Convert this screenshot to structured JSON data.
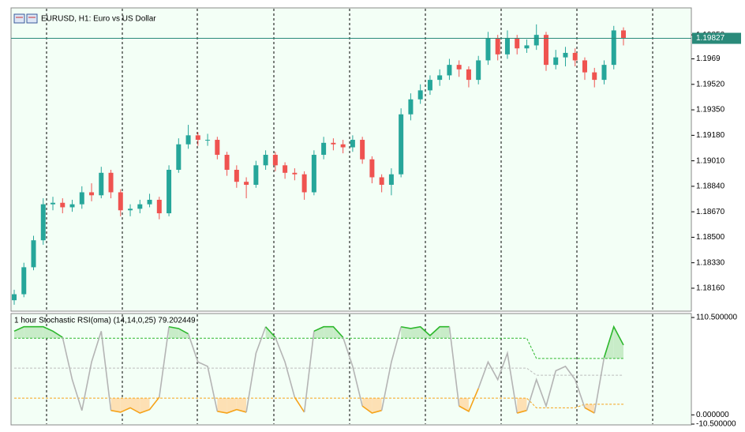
{
  "chart_data": [
    {
      "type": "candlestick",
      "title": "EURUSD, H1:  Euro vs US Dollar",
      "open": [
        1.1808,
        1.1812,
        1.183,
        1.1848,
        1.1872,
        1.1873,
        1.187,
        1.1872,
        1.188,
        1.1878,
        1.1893,
        1.188,
        1.1868,
        1.1869,
        1.1872,
        1.1875,
        1.1866,
        1.1895,
        1.1912,
        1.1918,
        1.1915,
        1.1915,
        1.1905,
        1.1895,
        1.1887,
        1.1885,
        1.1898,
        1.1905,
        1.1898,
        1.1893,
        1.1892,
        1.188,
        1.1905,
        1.1913,
        1.1912,
        1.191,
        1.1915,
        1.1902,
        1.189,
        1.1885,
        1.1892,
        1.1932,
        1.1942,
        1.1948,
        1.1955,
        1.1958,
        1.1965,
        1.1962,
        1.1955,
        1.1968,
        1.1983,
        1.1972,
        1.1983,
        1.1976,
        1.1978,
        1.1985,
        1.1965,
        1.197,
        1.1973,
        1.1968,
        1.196,
        1.1955,
        1.1965,
        1.1988
      ],
      "high": [
        1.1815,
        1.1833,
        1.1851,
        1.1876,
        1.1877,
        1.1876,
        1.1875,
        1.1884,
        1.1886,
        1.1897,
        1.1895,
        1.1882,
        1.1872,
        1.1875,
        1.1879,
        1.1877,
        1.1898,
        1.1916,
        1.1925,
        1.192,
        1.1919,
        1.1917,
        1.1907,
        1.1898,
        1.189,
        1.1901,
        1.1908,
        1.1907,
        1.19,
        1.1896,
        1.1894,
        1.1908,
        1.1917,
        1.1916,
        1.1915,
        1.1918,
        1.1917,
        1.1904,
        1.1892,
        1.1896,
        1.1936,
        1.1946,
        1.1952,
        1.1958,
        1.1962,
        1.1969,
        1.1968,
        1.1964,
        1.1971,
        1.1987,
        1.1985,
        1.1988,
        1.1985,
        1.1982,
        1.1992,
        1.1987,
        1.1975,
        1.1977,
        1.1976,
        1.197,
        1.1963,
        1.1968,
        1.1991,
        1.199
      ],
      "low": [
        1.1805,
        1.181,
        1.1828,
        1.1845,
        1.1868,
        1.1866,
        1.1867,
        1.1869,
        1.1874,
        1.1876,
        1.1876,
        1.1864,
        1.1864,
        1.1866,
        1.187,
        1.1862,
        1.1864,
        1.1893,
        1.1909,
        1.1911,
        1.1911,
        1.1902,
        1.1891,
        1.1883,
        1.1876,
        1.1883,
        1.1895,
        1.1894,
        1.1889,
        1.1888,
        1.1875,
        1.1878,
        1.1902,
        1.1908,
        1.1906,
        1.1907,
        1.1899,
        1.1886,
        1.188,
        1.1878,
        1.189,
        1.1928,
        1.1939,
        1.1945,
        1.1951,
        1.1955,
        1.1957,
        1.195,
        1.1952,
        1.1965,
        1.1968,
        1.1969,
        1.1972,
        1.1973,
        1.1975,
        1.1961,
        1.1962,
        1.1964,
        1.1964,
        1.1955,
        1.195,
        1.1952,
        1.1962,
        1.1978
      ],
      "close": [
        1.1812,
        1.183,
        1.1848,
        1.1872,
        1.1873,
        1.187,
        1.1872,
        1.188,
        1.1878,
        1.1893,
        1.188,
        1.1868,
        1.1869,
        1.1872,
        1.1875,
        1.1866,
        1.1895,
        1.1912,
        1.1918,
        1.1915,
        1.1915,
        1.1905,
        1.1895,
        1.1887,
        1.1885,
        1.1898,
        1.1905,
        1.1898,
        1.1893,
        1.1892,
        1.188,
        1.1905,
        1.1913,
        1.1912,
        1.191,
        1.1915,
        1.1902,
        1.189,
        1.1885,
        1.1892,
        1.1932,
        1.1942,
        1.1948,
        1.1955,
        1.1958,
        1.1965,
        1.1962,
        1.1955,
        1.1968,
        1.1983,
        1.1972,
        1.1983,
        1.1976,
        1.1978,
        1.1985,
        1.1965,
        1.197,
        1.1973,
        1.1968,
        1.196,
        1.1955,
        1.1965,
        1.1988,
        1.1983
      ],
      "bull_color": "#26a69a",
      "bear_color": "#ef5350",
      "ylim": [
        1.18007,
        1.2003
      ],
      "yticks": [
        {
          "value": 1.1985,
          "label": "1.19850"
        },
        1.1969,
        {
          "value": 1.1952,
          "label": "1.19520"
        },
        {
          "value": 1.1935,
          "label": "1.19350"
        },
        {
          "value": 1.1918,
          "label": "1.19180"
        },
        {
          "value": 1.1901,
          "label": "1.19010"
        },
        {
          "value": 1.1884,
          "label": "1.18840"
        },
        {
          "value": 1.1867,
          "label": "1.18670"
        },
        {
          "value": 1.185,
          "label": "1.18500"
        },
        {
          "value": 1.1833,
          "label": "1.18330"
        },
        {
          "value": 1.1816,
          "label": "1.18160"
        }
      ],
      "current_price": 1.19827,
      "current_price_color": "#2a8a7a"
    },
    {
      "type": "oscillator",
      "title": "1 hour Stochastic RSI(oma) (14,14,0,25) 79.202449",
      "values": [
        95,
        100,
        100,
        100,
        95,
        88,
        40,
        5,
        60,
        95,
        5,
        3,
        8,
        2,
        6,
        20,
        100,
        98,
        92,
        60,
        55,
        4,
        2,
        6,
        3,
        70,
        100,
        88,
        60,
        20,
        3,
        95,
        100,
        100,
        88,
        55,
        10,
        2,
        5,
        60,
        100,
        98,
        100,
        90,
        100,
        100,
        10,
        4,
        30,
        60,
        40,
        70,
        2,
        5,
        40,
        10,
        50,
        55,
        40,
        8,
        2,
        65,
        100,
        79.202449
      ],
      "line_colors": [
        "#2db82d",
        "#b4b4b4",
        "#f5a31a"
      ],
      "fill_colors": [
        "#c8ecc8",
        "#fde0b4"
      ],
      "levels": [
        {
          "color": "#2db82d",
          "values": [
            87,
            87,
            87,
            87,
            87,
            87,
            87,
            87,
            87,
            87,
            87,
            87,
            87,
            87,
            87,
            87,
            87,
            87,
            87,
            87,
            87,
            87,
            87,
            87,
            87,
            87,
            87,
            87,
            87,
            87,
            87,
            87,
            87,
            87,
            87,
            87,
            87,
            87,
            87,
            87,
            87,
            87,
            87,
            87,
            87,
            87,
            87,
            87,
            87,
            87,
            87,
            87,
            87,
            87,
            64,
            64,
            64,
            64,
            64,
            64,
            64,
            64,
            64,
            64
          ]
        },
        {
          "color": "#bdbdbd",
          "values": [
            53,
            53,
            53,
            53,
            53,
            53,
            53,
            53,
            53,
            53,
            53,
            53,
            53,
            53,
            53,
            53,
            53,
            53,
            53,
            53,
            53,
            53,
            53,
            53,
            53,
            53,
            53,
            53,
            53,
            53,
            53,
            53,
            53,
            53,
            53,
            53,
            53,
            53,
            53,
            53,
            53,
            53,
            53,
            53,
            53,
            53,
            53,
            53,
            53,
            53,
            53,
            53,
            53,
            53,
            45,
            45,
            45,
            45,
            45,
            45,
            45,
            45,
            45,
            45
          ]
        },
        {
          "color": "#f5a31a",
          "values": [
            19,
            19,
            19,
            19,
            19,
            19,
            19,
            19,
            19,
            19,
            19,
            19,
            19,
            19,
            19,
            19,
            19,
            19,
            19,
            19,
            19,
            19,
            19,
            19,
            19,
            19,
            19,
            19,
            19,
            19,
            19,
            19,
            19,
            19,
            19,
            19,
            19,
            19,
            19,
            19,
            19,
            19,
            19,
            19,
            19,
            19,
            19,
            19,
            19,
            19,
            19,
            19,
            19,
            19,
            8,
            8,
            8,
            8,
            8,
            12,
            12,
            12,
            12,
            12
          ]
        }
      ],
      "ylim": [
        -11.4,
        115
      ],
      "yticks": [
        {
          "value": 110.5,
          "label": "110.500000"
        },
        {
          "value": 0,
          "label": "0.000000"
        },
        {
          "value": -10.5,
          "label": "-10.500000"
        }
      ]
    }
  ]
}
